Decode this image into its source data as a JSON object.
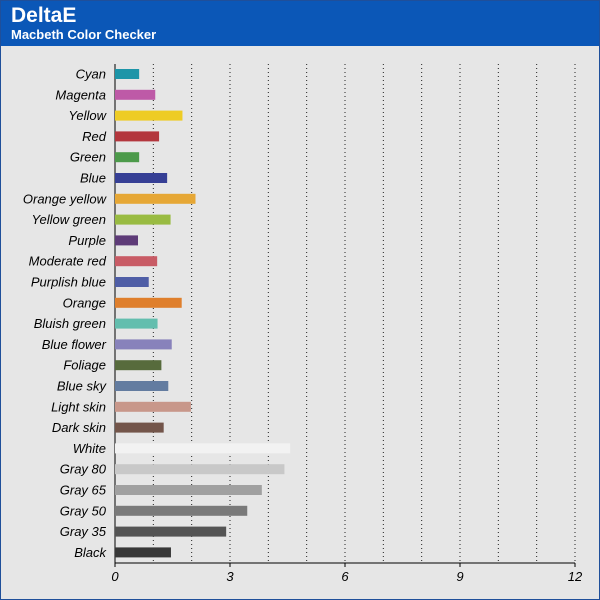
{
  "header": {
    "title": "DeltaE",
    "subtitle": "Macbeth Color Checker"
  },
  "chart_data": {
    "type": "bar",
    "orientation": "horizontal",
    "title": "DeltaE",
    "subtitle": "Macbeth Color Checker",
    "xlabel": "",
    "ylabel": "",
    "xlim": [
      0,
      12
    ],
    "x_ticks": [
      0,
      3,
      6,
      9,
      12
    ],
    "grid": "vertical dotted, every 1 unit",
    "categories": [
      "Cyan",
      "Magenta",
      "Yellow",
      "Red",
      "Green",
      "Blue",
      "Orange yellow",
      "Yellow green",
      "Purple",
      "Moderate red",
      "Purplish blue",
      "Orange",
      "Bluish green",
      "Blue flower",
      "Foliage",
      "Blue sky",
      "Light skin",
      "Dark skin",
      "White",
      "Gray 80",
      "Gray 65",
      "Gray 50",
      "Gray 35",
      "Black"
    ],
    "values": [
      0.63,
      1.05,
      1.76,
      1.15,
      0.63,
      1.36,
      2.1,
      1.45,
      0.6,
      1.1,
      0.88,
      1.74,
      1.11,
      1.48,
      1.21,
      1.39,
      1.98,
      1.27,
      4.57,
      4.42,
      3.83,
      3.45,
      2.9,
      1.46
    ],
    "colors": [
      "#1d95a8",
      "#be5aa7",
      "#eecc25",
      "#b3363d",
      "#4c9a4a",
      "#363f95",
      "#e6a735",
      "#99bb42",
      "#5e3b78",
      "#c85b65",
      "#4f5ea6",
      "#df7f2c",
      "#63beae",
      "#8882bb",
      "#576b3c",
      "#637ca0",
      "#c8978a",
      "#73554a",
      "#f2f2f2",
      "#c8c8c8",
      "#a0a0a0",
      "#7a7a7a",
      "#545454",
      "#383838"
    ]
  }
}
